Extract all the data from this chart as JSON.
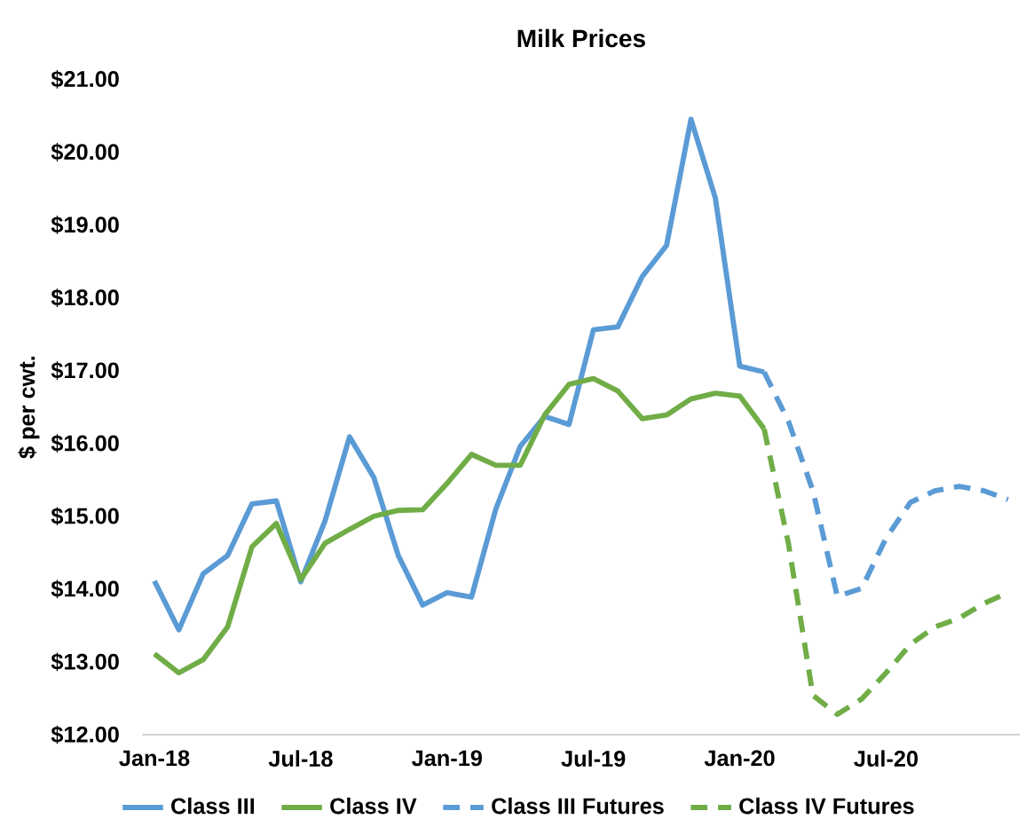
{
  "chart_data": {
    "type": "line",
    "title": "Milk Prices",
    "ylabel": "$ per cwt.",
    "categories": [
      "Jan-18",
      null,
      null,
      null,
      null,
      null,
      "Jul-18",
      null,
      null,
      null,
      null,
      null,
      "Jan-19",
      null,
      null,
      null,
      null,
      null,
      "Jul-19",
      null,
      null,
      null,
      null,
      null,
      "Jan-20",
      null,
      null,
      null,
      null,
      null,
      "Jul-20",
      null,
      null,
      null,
      null,
      null
    ],
    "series": [
      {
        "name": "Class III",
        "color": "#5b9bd5",
        "line_style": "solid",
        "values": [
          14.11,
          13.44,
          14.21,
          14.46,
          15.17,
          15.21,
          14.1,
          14.94,
          16.09,
          15.53,
          14.46,
          13.78,
          13.95,
          13.89,
          15.1,
          15.96,
          16.37,
          16.26,
          17.56,
          17.6,
          18.29,
          18.72,
          20.45,
          19.37,
          17.06,
          16.98,
          null,
          null,
          null,
          null,
          null,
          null,
          null,
          null,
          null,
          null
        ]
      },
      {
        "name": "Class IV",
        "color": "#70ad47",
        "line_style": "solid",
        "values": [
          13.11,
          12.85,
          13.03,
          13.48,
          14.58,
          14.9,
          14.13,
          14.63,
          14.82,
          15.0,
          15.08,
          15.09,
          15.45,
          15.85,
          15.7,
          15.7,
          16.39,
          16.81,
          16.89,
          16.72,
          16.34,
          16.39,
          16.61,
          16.69,
          16.65,
          16.2,
          null,
          null,
          null,
          null,
          null,
          null,
          null,
          null,
          null,
          null
        ]
      },
      {
        "name": "Class III Futures",
        "color": "#5b9bd5",
        "line_style": "dashed",
        "values": [
          null,
          null,
          null,
          null,
          null,
          null,
          null,
          null,
          null,
          null,
          null,
          null,
          null,
          null,
          null,
          null,
          null,
          null,
          null,
          null,
          null,
          null,
          null,
          null,
          null,
          16.98,
          16.3,
          15.35,
          13.9,
          14.01,
          14.7,
          15.19,
          15.35,
          15.41,
          15.35,
          15.23
        ]
      },
      {
        "name": "Class IV Futures",
        "color": "#70ad47",
        "line_style": "dashed",
        "values": [
          null,
          null,
          null,
          null,
          null,
          null,
          null,
          null,
          null,
          null,
          null,
          null,
          null,
          null,
          null,
          null,
          null,
          null,
          null,
          null,
          null,
          null,
          null,
          null,
          null,
          16.2,
          14.62,
          12.54,
          12.28,
          12.49,
          12.85,
          13.24,
          13.48,
          13.6,
          13.8,
          13.95
        ]
      }
    ],
    "ylim": [
      12,
      21
    ],
    "yticks": [
      {
        "value": 12,
        "label": "$12.00"
      },
      {
        "value": 13,
        "label": "$13.00"
      },
      {
        "value": 14,
        "label": "$14.00"
      },
      {
        "value": 15,
        "label": "$15.00"
      },
      {
        "value": 16,
        "label": "$16.00"
      },
      {
        "value": 17,
        "label": "$17.00"
      },
      {
        "value": 18,
        "label": "$18.00"
      },
      {
        "value": 19,
        "label": "$19.00"
      },
      {
        "value": 20,
        "label": "$20.00"
      },
      {
        "value": 21,
        "label": "$21.00"
      }
    ],
    "legend": "bottom",
    "marker": "none"
  }
}
